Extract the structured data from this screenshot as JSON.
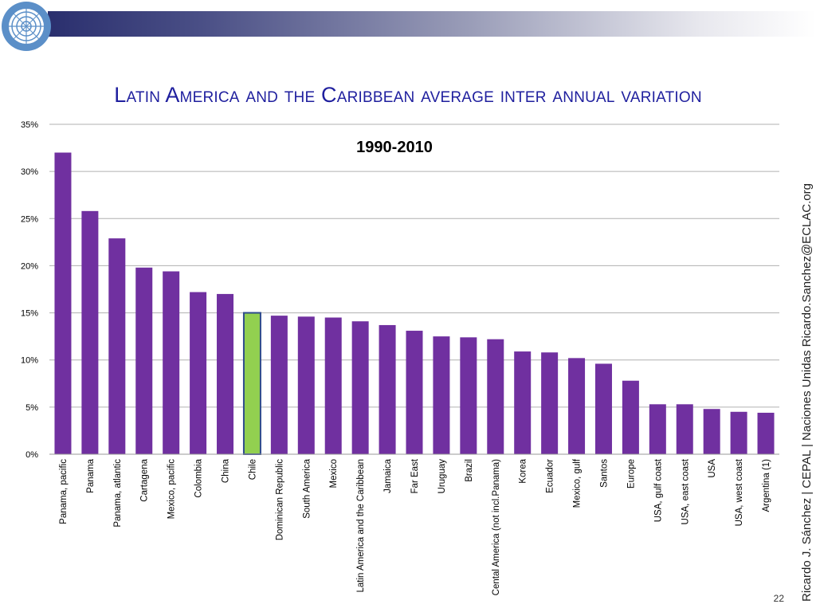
{
  "slide": {
    "title": "Latin America and the Caribbean average inter annual variation",
    "side_credit": "Ricardo J. Sánchez | CEPAL | Naciones Unidas   Ricardo.Sanchez@ECLAC.org",
    "page_number": "22"
  },
  "colors": {
    "bar": "#7030a0",
    "highlight": "#92d050",
    "highlight_border": "#2e4b8c",
    "title": "#1f1f9e"
  },
  "chart_data": {
    "type": "bar",
    "title": "1990-2010",
    "xlabel": "",
    "ylabel": "",
    "ylim": [
      0,
      35
    ],
    "yticks": [
      "0%",
      "5%",
      "10%",
      "15%",
      "20%",
      "25%",
      "30%",
      "35%"
    ],
    "grid": true,
    "highlight_category": "Chile",
    "categories": [
      "Panama, pacific",
      "Panama",
      "Panama, atlantic",
      "Cartagena",
      "Mexico, pacific",
      "Colombia",
      "China",
      "Chile",
      "Dominican Republic",
      "South America",
      "Mexico",
      "Latin America and the Caribbean",
      "Jamaica",
      "Far East",
      "Uruguay",
      "Brazil",
      "Cental America (not incl.Panama)",
      "Korea",
      "Ecuador",
      "Mexico, gulf",
      "Santos",
      "Europe",
      "USA, gulf coast",
      "USA, east coast",
      "USA",
      "USA, west coast",
      "Argentina (1)"
    ],
    "values": [
      32.0,
      25.8,
      22.9,
      19.8,
      19.4,
      17.2,
      17.0,
      15.0,
      14.7,
      14.6,
      14.5,
      14.1,
      13.7,
      13.1,
      12.5,
      12.4,
      12.2,
      10.9,
      10.8,
      10.2,
      9.6,
      7.8,
      5.3,
      5.3,
      4.8,
      4.5,
      4.4
    ]
  }
}
